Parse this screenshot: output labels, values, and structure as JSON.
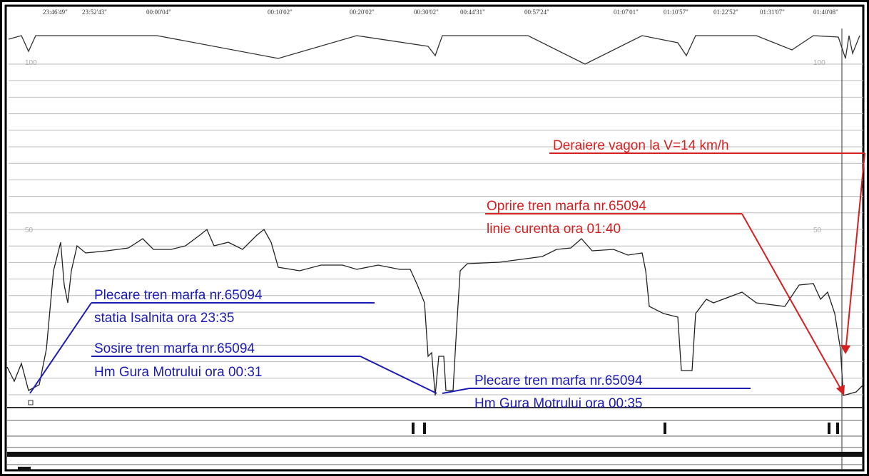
{
  "time_labels": [
    "23:46'49\"",
    "23:52'43\"",
    "00:00'04\"",
    "00:10'02\"",
    "00:20'02\"",
    "00:30'02\"",
    "00:44'31\"",
    "00:57'24\"",
    "01:07'01\"",
    "01:10'57\"",
    "01:22'52\"",
    "01:31'07\"",
    "01:40'08\""
  ],
  "scale_labels": [
    "100",
    "100",
    "50",
    "50"
  ],
  "annotations": {
    "departure_isalnita": [
      "Plecare tren marfa nr.65094",
      "statia Isalnita ora 23:35"
    ],
    "arrival_gura_motrului": [
      "Sosire tren marfa nr.65094",
      "Hm Gura Motrului ora 00:31"
    ],
    "departure_gura_motrului": [
      "Plecare tren marfa nr.65094",
      "Hm Gura Motrului ora 00:35"
    ],
    "derailment": "Deraiere vagon la V=14 km/h",
    "stop": [
      "Oprire tren marfa nr.65094",
      "linie curenta ora 01:40"
    ]
  }
}
